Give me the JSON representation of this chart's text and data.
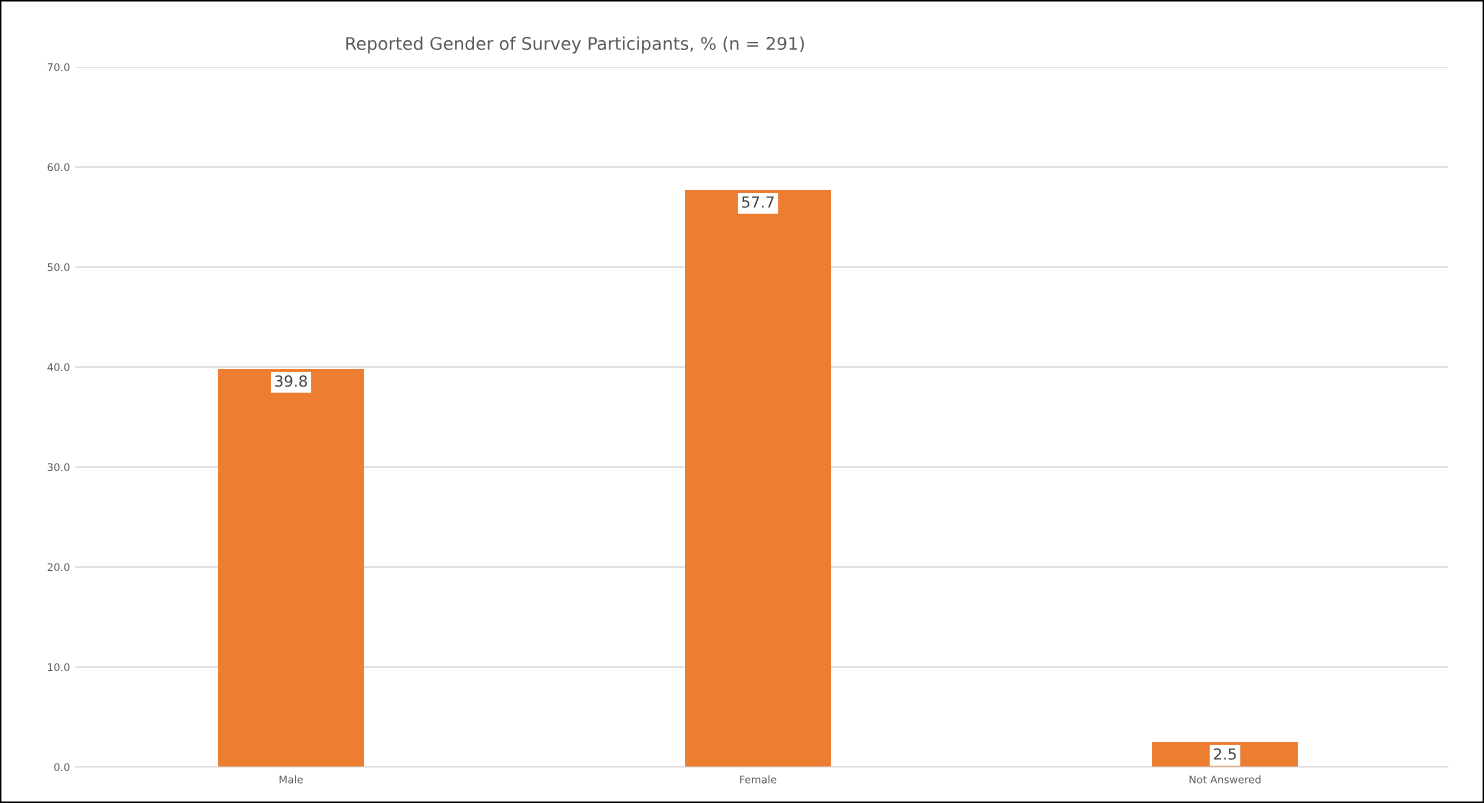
{
  "chart_data": {
    "type": "bar",
    "title": "Reported Gender of Survey Participants, % (n = 291)",
    "categories": [
      "Male",
      "Female",
      "Not Answered"
    ],
    "values": [
      39.8,
      57.7,
      2.5
    ],
    "color": "#ed7d31",
    "ylim": [
      0,
      70
    ],
    "yticks": [
      {
        "value": 0,
        "label": "0.0"
      },
      {
        "value": 10,
        "label": "10.0"
      },
      {
        "value": 20,
        "label": "20.0"
      },
      {
        "value": 30,
        "label": "30.0"
      },
      {
        "value": 40,
        "label": "40.0"
      },
      {
        "value": 50,
        "label": "50.0"
      },
      {
        "value": 60,
        "label": "60.0"
      },
      {
        "value": 70,
        "label": "70.0"
      }
    ],
    "grid": "y",
    "data_labels": true
  }
}
